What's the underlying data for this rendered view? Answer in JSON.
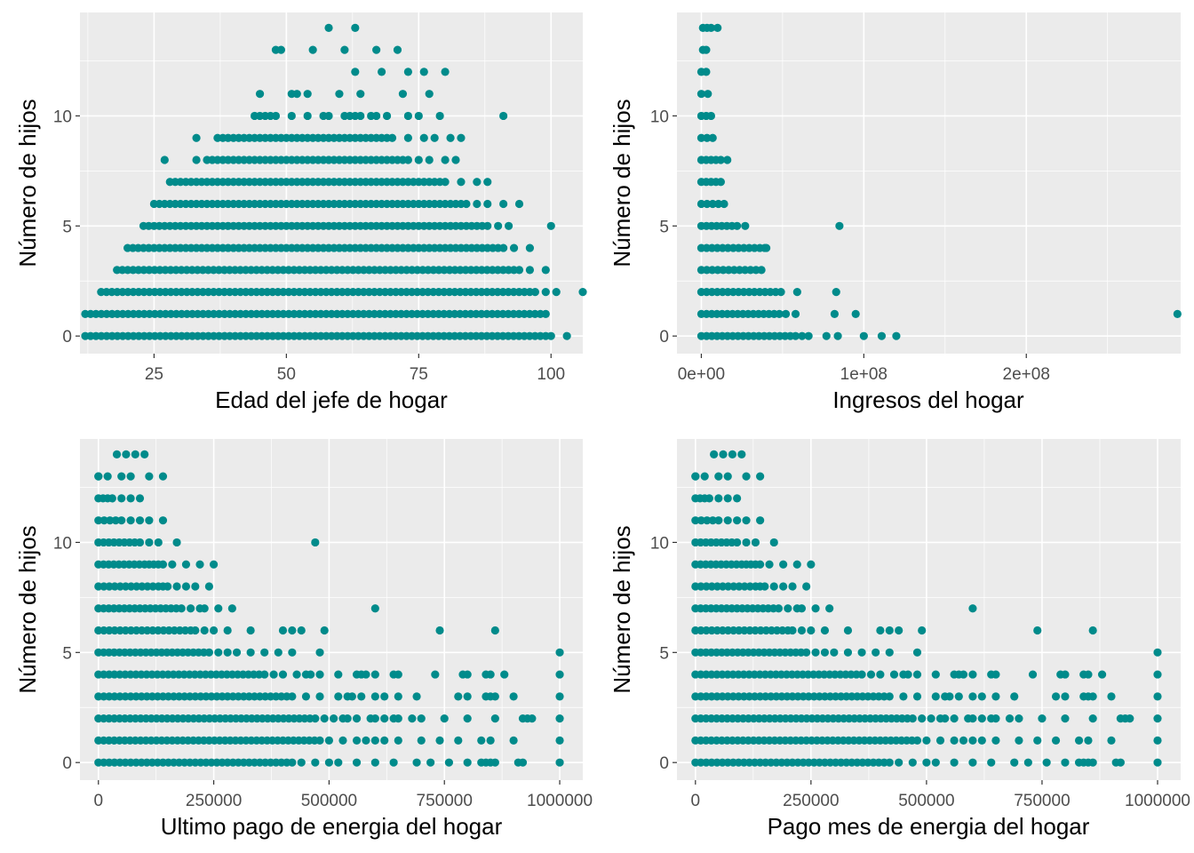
{
  "style": {
    "panel_bg": "#ebebeb",
    "grid_color": "#ffffff",
    "point_color": "#008b8b",
    "tick_color": "#333333"
  },
  "chart_data": [
    {
      "type": "scatter",
      "xlabel": "Edad del jefe de hogar",
      "ylabel": "Número de hijos",
      "xlim": [
        11,
        106
      ],
      "ylim": [
        -0.8,
        14.7
      ],
      "xticks": [
        25,
        50,
        75,
        100
      ],
      "xtick_labels": [
        "25",
        "50",
        "75",
        "100"
      ],
      "yticks": [
        0,
        5,
        10
      ],
      "ytick_labels": [
        "0",
        "5",
        "10"
      ],
      "grid": true,
      "legend": "none",
      "rows": [
        {
          "y": 0,
          "from": 12,
          "to": 99,
          "extra": [
            100,
            103
          ]
        },
        {
          "y": 1,
          "from": 12,
          "to": 99,
          "extra": []
        },
        {
          "y": 2,
          "from": 15,
          "to": 97,
          "extra": [
            99,
            101,
            106
          ]
        },
        {
          "y": 3,
          "from": 18,
          "to": 94,
          "extra": [
            96,
            99
          ]
        },
        {
          "y": 4,
          "from": 20,
          "to": 91,
          "extra": [
            93,
            96
          ]
        },
        {
          "y": 5,
          "from": 23,
          "to": 88,
          "extra": [
            90,
            92,
            100
          ]
        },
        {
          "y": 6,
          "from": 25,
          "to": 84,
          "extra": [
            86,
            88,
            91,
            94
          ]
        },
        {
          "y": 7,
          "from": 28,
          "to": 80,
          "extra": [
            83,
            86,
            88
          ]
        },
        {
          "y": 8,
          "from": 35,
          "to": 73,
          "extra": [
            27,
            33,
            75,
            77,
            80,
            82
          ]
        },
        {
          "y": 9,
          "from": 37,
          "to": 70,
          "extra": [
            33,
            73,
            76,
            78,
            81,
            83
          ]
        },
        {
          "y": 10,
          "from": 44,
          "to": 48,
          "extra": [
            51,
            54,
            57,
            58,
            61,
            62,
            63,
            64,
            66,
            67,
            69,
            73,
            75,
            79,
            91
          ]
        },
        {
          "y": 11,
          "from": 51,
          "to": 52,
          "extra": [
            45,
            54,
            60,
            64,
            72,
            77
          ]
        },
        {
          "y": 12,
          "from": 0,
          "to": -1,
          "extra": [
            63,
            68,
            73,
            76,
            80
          ]
        },
        {
          "y": 13,
          "from": 0,
          "to": -1,
          "extra": [
            48,
            49,
            55,
            61,
            67,
            71
          ]
        },
        {
          "y": 14,
          "from": 0,
          "to": -1,
          "extra": [
            58,
            63
          ]
        }
      ],
      "points": []
    },
    {
      "type": "scatter",
      "xlabel": "Ingresos del hogar",
      "ylabel": "Número de hijos",
      "xlim": [
        -15000000.0,
        295000000.0
      ],
      "ylim": [
        -0.8,
        14.7
      ],
      "xticks": [
        0,
        100000000,
        200000000
      ],
      "xtick_labels": [
        "0e+00",
        "1e+08",
        "2e+08"
      ],
      "yticks": [
        0,
        5,
        10
      ],
      "ytick_labels": [
        "0",
        "5",
        "10"
      ],
      "grid": true,
      "legend": "none",
      "rows": [
        {
          "y": 0,
          "from": 0,
          "to": 58000000,
          "extra": [
            62000000,
            66000000,
            77000000,
            84000000,
            100000000,
            111000000,
            120000000
          ]
        },
        {
          "y": 1,
          "from": 0,
          "to": 48000000,
          "extra": [
            52000000,
            58000000,
            82000000,
            95000000,
            293000000
          ]
        },
        {
          "y": 2,
          "from": 0,
          "to": 49000000,
          "extra": [
            59000000,
            83000000
          ]
        },
        {
          "y": 3,
          "from": 0,
          "to": 37000000,
          "extra": []
        },
        {
          "y": 4,
          "from": 0,
          "to": 36000000,
          "extra": [
            39000000,
            40000000
          ]
        },
        {
          "y": 5,
          "from": 0,
          "to": 22000000,
          "extra": [
            27000000,
            85000000
          ]
        },
        {
          "y": 6,
          "from": 0,
          "to": 14000000,
          "extra": []
        },
        {
          "y": 7,
          "from": 0,
          "to": 12000000,
          "extra": []
        },
        {
          "y": 8,
          "from": 0,
          "to": 12000000,
          "extra": [
            16000000
          ]
        },
        {
          "y": 9,
          "from": 0,
          "to": 7000000,
          "extra": []
        },
        {
          "y": 10,
          "from": 0,
          "to": 6000000,
          "extra": []
        },
        {
          "y": 11,
          "from": 0,
          "to": 4000000,
          "extra": []
        },
        {
          "y": 12,
          "from": 0,
          "to": 3000000,
          "extra": []
        },
        {
          "y": 13,
          "from": 1000000,
          "to": 3000000,
          "extra": []
        },
        {
          "y": 14,
          "from": 1000000,
          "to": 6000000,
          "extra": [
            10000000
          ]
        }
      ],
      "points": []
    },
    {
      "type": "scatter",
      "xlabel": "Ultimo pago de energia del hogar",
      "ylabel": "Número de hijos",
      "xlim": [
        -40000,
        1050000
      ],
      "ylim": [
        -0.8,
        14.7
      ],
      "xticks": [
        0,
        250000,
        500000,
        750000,
        1000000
      ],
      "xtick_labels": [
        "0",
        "250000",
        "500000",
        "750000",
        "1000000"
      ],
      "yticks": [
        0,
        5,
        10
      ],
      "ytick_labels": [
        "0",
        "5",
        "10"
      ],
      "grid": true,
      "legend": "none",
      "rows": [
        {
          "y": 0,
          "from": 0,
          "to": 420000,
          "extra": [
            440000,
            470000,
            500000,
            520000,
            560000,
            600000,
            640000,
            690000,
            720000,
            760000,
            800000,
            830000,
            840000,
            850000,
            860000,
            910000,
            920000,
            1000000
          ]
        },
        {
          "y": 1,
          "from": 0,
          "to": 480000,
          "extra": [
            500000,
            530000,
            560000,
            580000,
            600000,
            620000,
            650000,
            700000,
            740000,
            780000,
            830000,
            850000,
            900000,
            1000000
          ]
        },
        {
          "y": 2,
          "from": 0,
          "to": 470000,
          "extra": [
            490000,
            510000,
            530000,
            540000,
            560000,
            590000,
            600000,
            620000,
            640000,
            650000,
            680000,
            700000,
            750000,
            800000,
            860000,
            920000,
            930000,
            940000,
            1000000
          ]
        },
        {
          "y": 3,
          "from": 0,
          "to": 420000,
          "extra": [
            450000,
            480000,
            520000,
            540000,
            550000,
            570000,
            600000,
            620000,
            650000,
            690000,
            780000,
            800000,
            840000,
            850000,
            860000,
            900000,
            1000000
          ]
        },
        {
          "y": 4,
          "from": 0,
          "to": 360000,
          "extra": [
            380000,
            400000,
            430000,
            450000,
            460000,
            480000,
            520000,
            560000,
            570000,
            580000,
            600000,
            640000,
            650000,
            730000,
            790000,
            800000,
            840000,
            850000,
            880000,
            1000000
          ]
        },
        {
          "y": 5,
          "from": 0,
          "to": 240000,
          "extra": [
            260000,
            280000,
            300000,
            330000,
            360000,
            390000,
            420000,
            480000,
            1000000
          ]
        },
        {
          "y": 6,
          "from": 0,
          "to": 200000,
          "extra": [
            210000,
            230000,
            250000,
            280000,
            330000,
            400000,
            420000,
            440000,
            490000,
            740000,
            860000
          ]
        },
        {
          "y": 7,
          "from": 0,
          "to": 180000,
          "extra": [
            200000,
            220000,
            230000,
            260000,
            290000,
            600000
          ]
        },
        {
          "y": 8,
          "from": 0,
          "to": 130000,
          "extra": [
            140000,
            150000,
            170000,
            190000,
            210000,
            240000
          ]
        },
        {
          "y": 9,
          "from": 0,
          "to": 100000,
          "extra": [
            110000,
            120000,
            130000,
            140000,
            160000,
            190000,
            220000,
            250000
          ]
        },
        {
          "y": 10,
          "from": 0,
          "to": 90000,
          "extra": [
            110000,
            130000,
            170000,
            470000
          ]
        },
        {
          "y": 11,
          "from": 0,
          "to": 50000,
          "extra": [
            70000,
            90000,
            110000,
            140000
          ]
        },
        {
          "y": 12,
          "from": 0,
          "to": 30000,
          "extra": [
            50000,
            70000,
            90000
          ]
        },
        {
          "y": 13,
          "from": 0,
          "to": 0,
          "extra": [
            20000,
            50000,
            70000,
            110000,
            140000
          ]
        },
        {
          "y": 14,
          "from": 0,
          "to": -1,
          "extra": [
            40000,
            60000,
            80000,
            100000
          ]
        }
      ],
      "points": []
    },
    {
      "type": "scatter",
      "xlabel": "Pago mes de energia del hogar",
      "ylabel": "Número de hijos",
      "xlim": [
        -40000,
        1050000
      ],
      "ylim": [
        -0.8,
        14.7
      ],
      "xticks": [
        0,
        250000,
        500000,
        750000,
        1000000
      ],
      "xtick_labels": [
        "0",
        "250000",
        "500000",
        "750000",
        "1000000"
      ],
      "yticks": [
        0,
        5,
        10
      ],
      "ytick_labels": [
        "0",
        "5",
        "10"
      ],
      "grid": true,
      "legend": "none",
      "rows": [
        {
          "y": 0,
          "from": 0,
          "to": 420000,
          "extra": [
            440000,
            470000,
            500000,
            520000,
            560000,
            600000,
            640000,
            690000,
            720000,
            760000,
            800000,
            830000,
            840000,
            850000,
            860000,
            910000,
            920000,
            1000000
          ]
        },
        {
          "y": 1,
          "from": 0,
          "to": 480000,
          "extra": [
            500000,
            530000,
            560000,
            580000,
            600000,
            620000,
            650000,
            700000,
            740000,
            780000,
            830000,
            850000,
            900000,
            1000000
          ]
        },
        {
          "y": 2,
          "from": 0,
          "to": 470000,
          "extra": [
            490000,
            510000,
            530000,
            540000,
            560000,
            590000,
            600000,
            620000,
            640000,
            650000,
            680000,
            700000,
            750000,
            800000,
            860000,
            920000,
            930000,
            940000,
            1000000
          ]
        },
        {
          "y": 3,
          "from": 0,
          "to": 420000,
          "extra": [
            450000,
            480000,
            520000,
            540000,
            550000,
            570000,
            600000,
            620000,
            650000,
            690000,
            780000,
            800000,
            840000,
            850000,
            860000,
            900000,
            1000000
          ]
        },
        {
          "y": 4,
          "from": 0,
          "to": 360000,
          "extra": [
            380000,
            400000,
            430000,
            450000,
            460000,
            480000,
            520000,
            560000,
            570000,
            580000,
            600000,
            640000,
            650000,
            730000,
            790000,
            800000,
            840000,
            850000,
            880000,
            1000000
          ]
        },
        {
          "y": 5,
          "from": 0,
          "to": 240000,
          "extra": [
            260000,
            280000,
            300000,
            330000,
            360000,
            390000,
            420000,
            480000,
            1000000
          ]
        },
        {
          "y": 6,
          "from": 0,
          "to": 200000,
          "extra": [
            210000,
            230000,
            250000,
            280000,
            330000,
            400000,
            420000,
            440000,
            490000,
            740000,
            860000
          ]
        },
        {
          "y": 7,
          "from": 0,
          "to": 180000,
          "extra": [
            200000,
            220000,
            230000,
            260000,
            290000,
            600000
          ]
        },
        {
          "y": 8,
          "from": 0,
          "to": 130000,
          "extra": [
            140000,
            150000,
            170000,
            190000,
            210000,
            240000
          ]
        },
        {
          "y": 9,
          "from": 0,
          "to": 100000,
          "extra": [
            110000,
            120000,
            130000,
            140000,
            160000,
            190000,
            220000,
            250000
          ]
        },
        {
          "y": 10,
          "from": 0,
          "to": 90000,
          "extra": [
            110000,
            130000,
            170000
          ]
        },
        {
          "y": 11,
          "from": 0,
          "to": 50000,
          "extra": [
            70000,
            90000,
            110000,
            140000
          ]
        },
        {
          "y": 12,
          "from": 0,
          "to": 30000,
          "extra": [
            50000,
            70000,
            90000
          ]
        },
        {
          "y": 13,
          "from": 0,
          "to": 0,
          "extra": [
            20000,
            50000,
            70000,
            110000,
            140000
          ]
        },
        {
          "y": 14,
          "from": 0,
          "to": -1,
          "extra": [
            40000,
            60000,
            80000,
            100000
          ]
        }
      ],
      "points": []
    }
  ]
}
